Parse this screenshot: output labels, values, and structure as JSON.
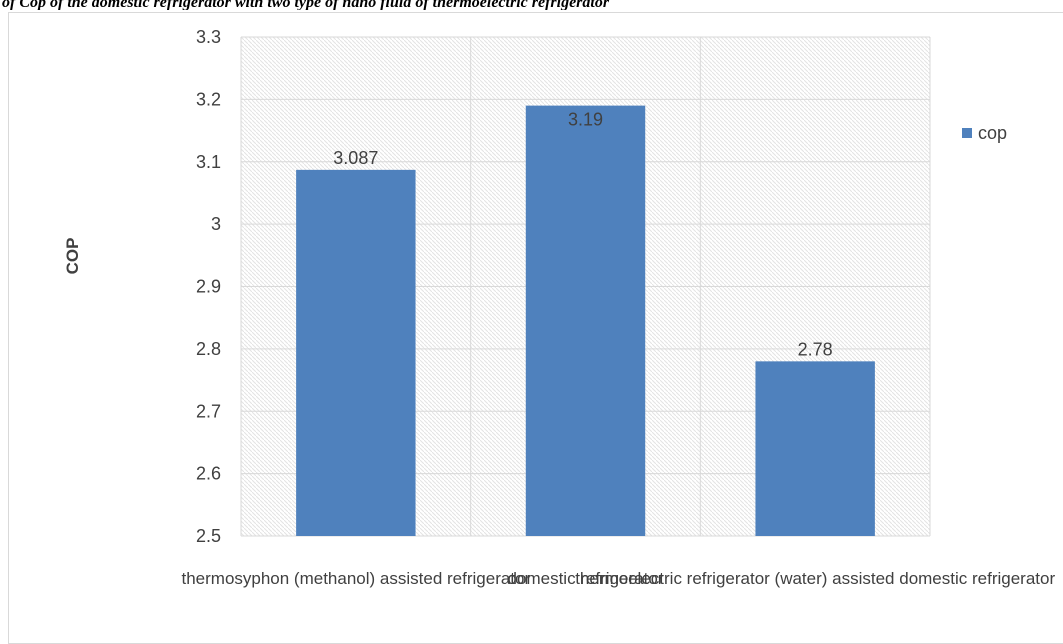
{
  "caption": "of Cop of the domestic refrigerator with two type of nano fluid of thermoelectric refrigerator",
  "chart_data": {
    "type": "bar",
    "categories": [
      "thermosyphon (methanol) assisted refrigerator",
      "domestic refrigerator",
      "thermoelectric refrigerator (water) assisted domestic refrigerator"
    ],
    "series": [
      {
        "name": "cop",
        "values": [
          3.087,
          3.19,
          2.78
        ],
        "labels": [
          "3.087",
          "3.19",
          "2.78"
        ]
      }
    ],
    "ylabel": "COP",
    "xlabel": "",
    "ylim": [
      2.5,
      3.3
    ],
    "yticks": [
      "2.5",
      "2.6",
      "2.7",
      "2.8",
      "2.9",
      "3",
      "3.1",
      "3.2",
      "3.3"
    ],
    "grid": true,
    "legend": "right",
    "bar_color": "#4f81bd"
  }
}
